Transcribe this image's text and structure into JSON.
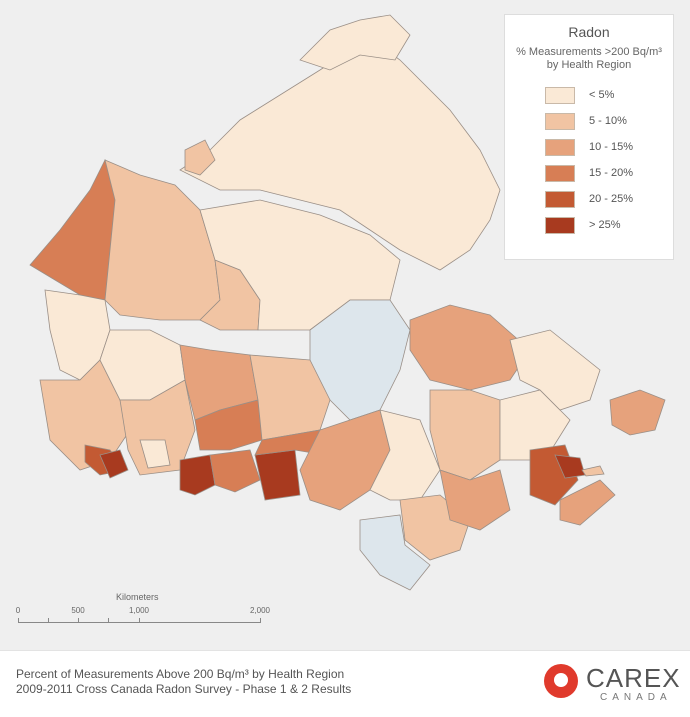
{
  "legend": {
    "title": "Radon",
    "subtitle": "% Measurements >200 Bq/m³ by Health Region",
    "items": [
      {
        "label": "< 5%",
        "color": "#fae9d6"
      },
      {
        "label": "5 - 10%",
        "color": "#f1c4a3"
      },
      {
        "label": "10 - 15%",
        "color": "#e6a27c"
      },
      {
        "label": "15 - 20%",
        "color": "#d77e55"
      },
      {
        "label": "20 - 25%",
        "color": "#c35a33"
      },
      {
        "label": "> 25%",
        "color": "#a83a1f"
      }
    ]
  },
  "scale": {
    "title": "Kilometers",
    "ticks": [
      "0",
      "500",
      "1,000",
      "2,000"
    ]
  },
  "caption": {
    "line1": "Percent of Measurements Above 200 Bq/m³ by Health Region",
    "line2": "2009-2011 Cross Canada Radon Survey - Phase 1 & 2 Results"
  },
  "logo": {
    "name": "CAREX",
    "sub": "CANADA",
    "color": "#e03a2c"
  },
  "colors": {
    "water": "#dde6ec",
    "background": "#efefef",
    "border": "#9a8f87"
  }
}
